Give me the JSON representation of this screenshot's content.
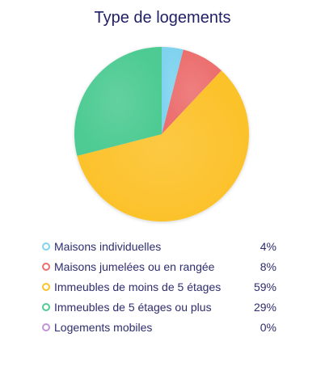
{
  "chart_data": {
    "type": "pie",
    "title": "Type de logements",
    "slices": [
      {
        "label": "Maisons individuelles",
        "value": 4,
        "display": "4%",
        "color": "#7fd3ef"
      },
      {
        "label": "Maisons jumelées ou en rangée",
        "value": 8,
        "display": "8%",
        "color": "#ec6e6e"
      },
      {
        "label": "Immeubles de moins de 5 étages",
        "value": 59,
        "display": "59%",
        "color": "#fcc22b"
      },
      {
        "label": "Immeubles de 5 étages ou plus",
        "value": 29,
        "display": "29%",
        "color": "#4ecb93"
      },
      {
        "label": "Logements mobiles",
        "value": 0,
        "display": "0%",
        "color": "#c294d4"
      }
    ],
    "legend_position": "bottom"
  }
}
